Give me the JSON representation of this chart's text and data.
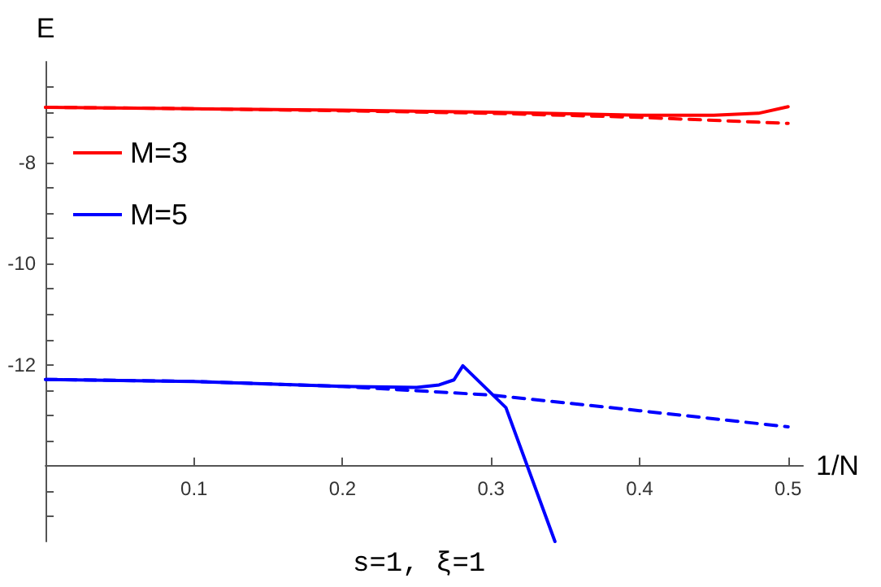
{
  "chart_data": {
    "type": "line",
    "xlabel": "1/N",
    "ylabel": "E",
    "annotations": [
      "s=1, ξ=1"
    ],
    "xlim": [
      0,
      0.51
    ],
    "xticks": [
      0.1,
      0.2,
      0.3,
      0.4,
      0.5
    ],
    "ylim": [
      -15.5,
      -6
    ],
    "yticks": [
      {
        "value": -15,
        "label": null
      },
      {
        "value": -14.5,
        "label": null
      },
      {
        "value": -14,
        "label": null
      },
      {
        "value": -13.5,
        "label": null
      },
      {
        "value": -13,
        "label": null
      },
      {
        "value": -12.5,
        "label": null
      },
      -12,
      {
        "value": -11.5,
        "label": null
      },
      {
        "value": -11,
        "label": null
      },
      {
        "value": -10.5,
        "label": null
      },
      -10,
      {
        "value": -9.5,
        "label": null
      },
      {
        "value": -9,
        "label": null
      },
      {
        "value": -8.5,
        "label": null
      },
      -8,
      {
        "value": -7.5,
        "label": null
      },
      {
        "value": -7,
        "label": null
      },
      {
        "value": -6.5,
        "label": null
      }
    ],
    "grid": false,
    "legend": "top left",
    "marker": "none",
    "series": [
      {
        "name": "M=3",
        "color": "#ff0000",
        "line_style": "solid",
        "x": [
          0,
          0.1,
          0.2,
          0.3,
          0.4,
          0.45,
          0.48,
          0.5
        ],
        "values": [
          -6.9,
          -6.93,
          -6.96,
          -7.0,
          -7.06,
          -7.06,
          -7.02,
          -6.89
        ]
      },
      {
        "color": "#ff0000",
        "line_style": "dashed",
        "x": [
          0,
          0.1,
          0.2,
          0.3,
          0.4,
          0.5
        ],
        "values": [
          -6.9,
          -6.93,
          -6.97,
          -7.02,
          -7.1,
          -7.22
        ]
      },
      {
        "name": "M=5",
        "color": "#0000ff",
        "line_style": "solid",
        "x": [
          0,
          0.1,
          0.2,
          0.25,
          0.265,
          0.275,
          0.281,
          0.31,
          0.343
        ],
        "values": [
          -12.29,
          -12.33,
          -12.43,
          -12.45,
          -12.4,
          -12.3,
          -12.02,
          -12.85,
          -15.5
        ]
      },
      {
        "color": "#0000ff",
        "line_style": "dashed",
        "x": [
          0,
          0.1,
          0.2,
          0.3,
          0.4,
          0.5
        ],
        "values": [
          -12.29,
          -12.33,
          -12.43,
          -12.6,
          -12.91,
          -13.23
        ]
      }
    ]
  }
}
